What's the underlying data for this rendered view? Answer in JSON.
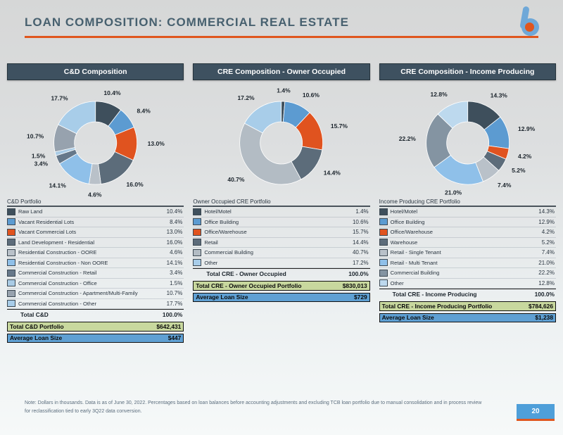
{
  "slide": {
    "title": "LOAN COMPOSITION: COMMERCIAL REAL ESTATE",
    "page_number": "20",
    "footnote": "Note: Dollars in thousands. Data is as of June 30, 2022. Percentages based on loan balances before accounting adjustments and excluding TCB loan portfolio due to manual consolidation and in process review for reclassification tied to early 3Q22 data conversion.",
    "accent_orange": "#E0561E",
    "header_bar_color": "#3E5160",
    "portfolio_row_color": "#C8D89E",
    "avg_row_color": "#5FA0D3",
    "logo_blue": "#6FA8D8"
  },
  "chart_data": [
    {
      "type": "pie",
      "subtype": "donut",
      "title": "C&D Composition",
      "table_title": "C&D Portfolio",
      "categories": [
        "Raw Land",
        "Vacant Residential Lots",
        "Vacant Commercial Lots",
        "Land Development - Residential",
        "Residential Construction - OORE",
        "Residential Construction - Non OORE",
        "Commercial Construction - Retail",
        "Commercial Construction - Office",
        "Commercial Construction - Apartment/Multi-Family",
        "Commercial Construction - Other"
      ],
      "values": [
        10.4,
        8.4,
        13.0,
        16.0,
        4.6,
        14.1,
        3.4,
        1.5,
        10.7,
        17.7
      ],
      "colors": [
        "#3E4F5C",
        "#5C9BD1",
        "#E0531F",
        "#5C6C7A",
        "#B9C1C9",
        "#8FC0E9",
        "#66788A",
        "#A9CBE5",
        "#97A2AE",
        "#A8CDE9"
      ],
      "summary": {
        "total_label": "Total C&D",
        "total_value": "100.0%",
        "portfolio_label": "Total C&D Portfolio",
        "portfolio_value": "$642,431",
        "avg_label": "Average Loan Size",
        "avg_value": "$447"
      }
    },
    {
      "type": "pie",
      "subtype": "donut",
      "title": "CRE Composition - Owner Occupied",
      "table_title": "Owner Occupied CRE Portfolio",
      "categories": [
        "Hotel/Motel",
        "Office Building",
        "Office/Warehouse",
        "Retail",
        "Commercial Building",
        "Other"
      ],
      "values": [
        1.4,
        10.6,
        15.7,
        14.4,
        40.7,
        17.2
      ],
      "colors": [
        "#3E4F5C",
        "#5C9BD1",
        "#E0531F",
        "#5C6C7A",
        "#B3BCC4",
        "#A8CDE9"
      ],
      "summary": {
        "total_label": "Total CRE - Owner Occupied",
        "total_value": "100.0%",
        "portfolio_label": "Total CRE - Owner Occupied Portfolio",
        "portfolio_value": "$830,013",
        "avg_label": "Average Loan Size",
        "avg_value": "$729"
      }
    },
    {
      "type": "pie",
      "subtype": "donut",
      "title": "CRE Composition - Income Producing",
      "table_title": "Income Producing CRE Portfolio",
      "categories": [
        "Hotel/Motel",
        "Office Building",
        "Office/Warehouse",
        "Warehouse",
        "Retail - Single Tenant",
        "Retail - Multi Tenant",
        "Commercial Building",
        "Other"
      ],
      "values": [
        14.3,
        12.9,
        4.2,
        5.2,
        7.4,
        21.0,
        22.2,
        12.8
      ],
      "colors": [
        "#3E4F5C",
        "#5C9BD1",
        "#E0531F",
        "#5C6C7A",
        "#B9C1C9",
        "#8FC0E9",
        "#8494A2",
        "#BDD9EE"
      ],
      "summary": {
        "total_label": "Total CRE - Income Producing",
        "total_value": "100.0%",
        "portfolio_label": "Total CRE - Income Producing Portfolio",
        "portfolio_value": "$784,626",
        "avg_label": "Average Loan Size",
        "avg_value": "$1,238"
      }
    }
  ]
}
